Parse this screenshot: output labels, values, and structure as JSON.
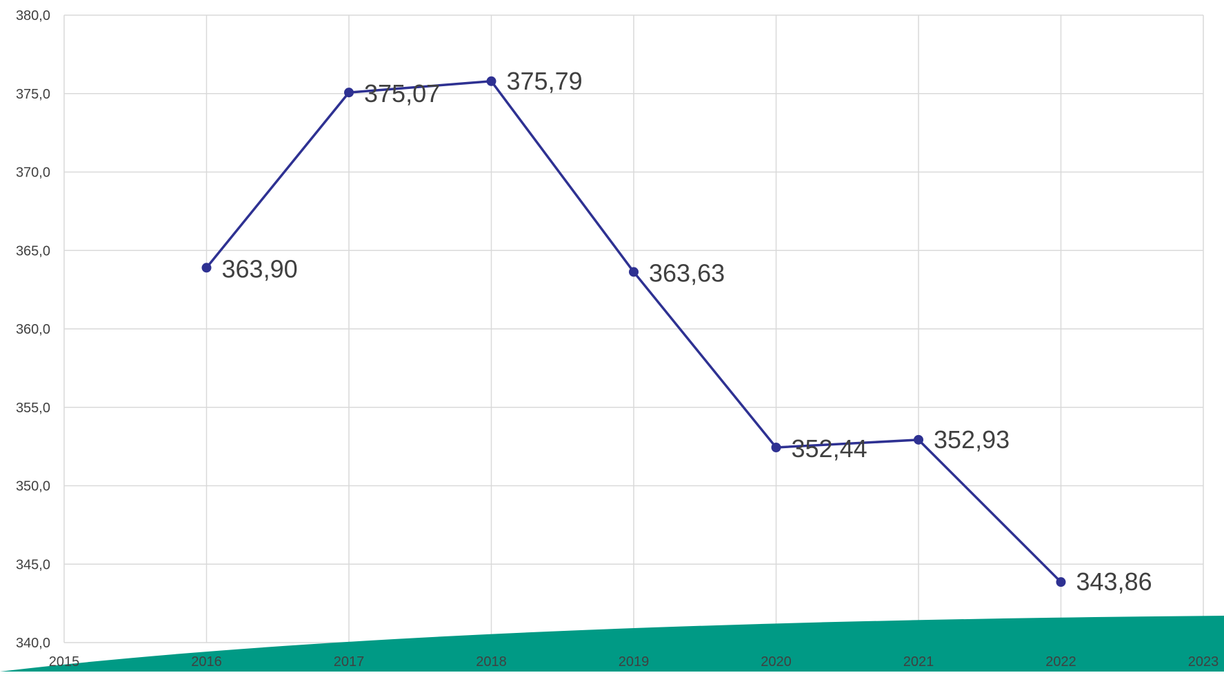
{
  "colors": {
    "series": "#2e3192",
    "grid": "#d9d9d9",
    "text": "#404040",
    "wave": "#009a85"
  },
  "chart_data": {
    "type": "line",
    "title": "",
    "xlabel": "",
    "ylabel": "",
    "xlim": [
      2015,
      2023
    ],
    "ylim": [
      340,
      380
    ],
    "x_ticks": [
      2015,
      2016,
      2017,
      2018,
      2019,
      2020,
      2021,
      2022,
      2023
    ],
    "y_ticks": [
      340,
      345,
      350,
      355,
      360,
      365,
      370,
      375,
      380
    ],
    "y_tick_labels": [
      "340,0",
      "345,0",
      "350,0",
      "355,0",
      "360,0",
      "365,0",
      "370,0",
      "375,0",
      "380,0"
    ],
    "grid": true,
    "legend": "none",
    "series": [
      {
        "x": [
          2016,
          2017,
          2018,
          2019,
          2020,
          2021,
          2022
        ],
        "values": [
          363.9,
          375.07,
          375.79,
          363.63,
          352.44,
          352.93,
          343.86
        ],
        "labels": [
          "363,90",
          "375,07",
          "375,79",
          "363,63",
          "352,44",
          "352,93",
          "343,86"
        ]
      }
    ]
  }
}
